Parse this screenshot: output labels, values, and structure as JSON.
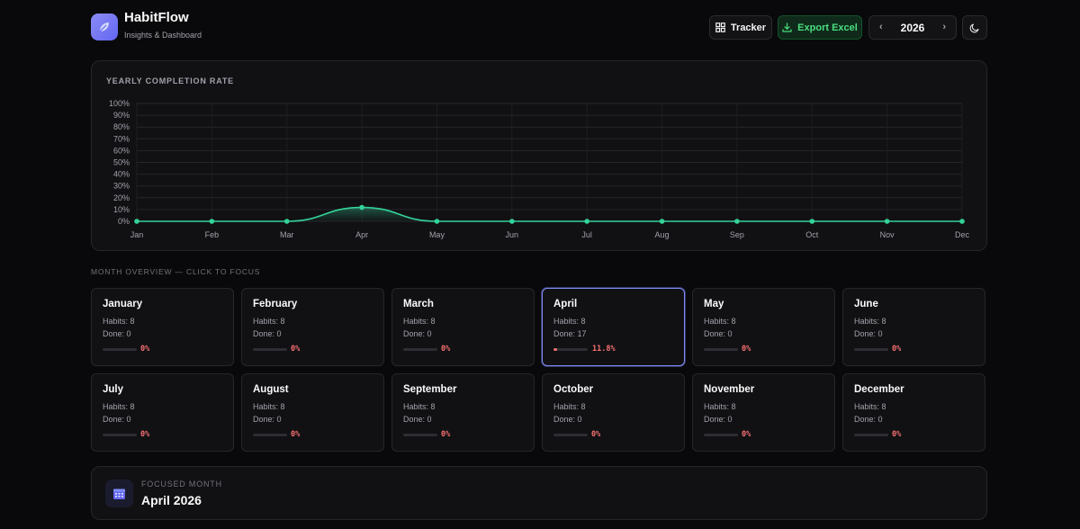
{
  "app": {
    "title": "HabitFlow",
    "subtitle": "Insights & Dashboard"
  },
  "toolbar": {
    "tracker_label": "Tracker",
    "export_label": "Export Excel",
    "year": "2026",
    "prev_icon": "chevron-left-icon",
    "next_icon": "chevron-right-icon",
    "theme_icon": "moon-icon"
  },
  "chart_card": {
    "title": "YEARLY COMPLETION RATE"
  },
  "chart_data": {
    "type": "line",
    "title": "YEARLY COMPLETION RATE",
    "categories": [
      "Jan",
      "Feb",
      "Mar",
      "Apr",
      "May",
      "Jun",
      "Jul",
      "Aug",
      "Sep",
      "Oct",
      "Nov",
      "Dec"
    ],
    "values": [
      0,
      0,
      0,
      11.8,
      0,
      0,
      0,
      0,
      0,
      0,
      0,
      0
    ],
    "yticks": [
      "0%",
      "10%",
      "20%",
      "30%",
      "40%",
      "50%",
      "60%",
      "70%",
      "80%",
      "90%",
      "100%"
    ],
    "ylim": [
      0,
      100
    ],
    "grid": true,
    "line_color": "#34d399"
  },
  "overview": {
    "label": "MONTH OVERVIEW — CLICK TO FOCUS"
  },
  "months": [
    {
      "name": "January",
      "habits": "Habits: 8",
      "done": "Done: 0",
      "pct": "0%",
      "rate": 0
    },
    {
      "name": "February",
      "habits": "Habits: 8",
      "done": "Done: 0",
      "pct": "0%",
      "rate": 0
    },
    {
      "name": "March",
      "habits": "Habits: 8",
      "done": "Done: 0",
      "pct": "0%",
      "rate": 0
    },
    {
      "name": "April",
      "habits": "Habits: 8",
      "done": "Done: 17",
      "pct": "11.8%",
      "rate": 11.8,
      "focused": true
    },
    {
      "name": "May",
      "habits": "Habits: 8",
      "done": "Done: 0",
      "pct": "0%",
      "rate": 0
    },
    {
      "name": "June",
      "habits": "Habits: 8",
      "done": "Done: 0",
      "pct": "0%",
      "rate": 0
    },
    {
      "name": "July",
      "habits": "Habits: 8",
      "done": "Done: 0",
      "pct": "0%",
      "rate": 0
    },
    {
      "name": "August",
      "habits": "Habits: 8",
      "done": "Done: 0",
      "pct": "0%",
      "rate": 0
    },
    {
      "name": "September",
      "habits": "Habits: 8",
      "done": "Done: 0",
      "pct": "0%",
      "rate": 0
    },
    {
      "name": "October",
      "habits": "Habits: 8",
      "done": "Done: 0",
      "pct": "0%",
      "rate": 0
    },
    {
      "name": "November",
      "habits": "Habits: 8",
      "done": "Done: 0",
      "pct": "0%",
      "rate": 0
    },
    {
      "name": "December",
      "habits": "Habits: 8",
      "done": "Done: 0",
      "pct": "0%",
      "rate": 0
    }
  ],
  "focused": {
    "label": "FOCUSED MONTH",
    "month": "April 2026"
  },
  "colors": {
    "accent": "#818cf8",
    "success": "#34d399",
    "danger": "#f87171",
    "export": "#4ade80"
  }
}
